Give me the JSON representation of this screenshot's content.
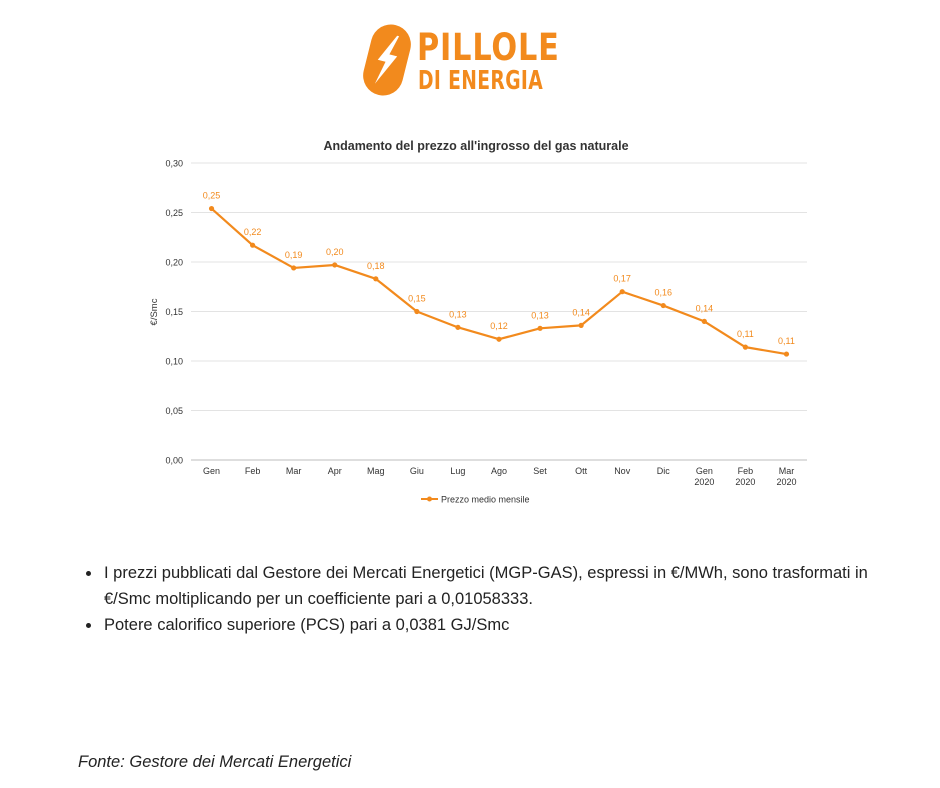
{
  "brand": {
    "line1": "PILLOLE",
    "line2": "DI ENERGIA",
    "accent_color": "#f28a1d",
    "icon": "lightning-bolt-icon"
  },
  "chart_data": {
    "type": "line",
    "title": "Andamento del prezzo all'ingrosso del gas naturale",
    "xlabel": "",
    "ylabel": "€/Smc",
    "ylim": [
      0,
      0.3
    ],
    "yticks": [
      "0,00",
      "0,05",
      "0,10",
      "0,15",
      "0,20",
      "0,25",
      "0,30"
    ],
    "categories": [
      [
        "Gen"
      ],
      [
        "Feb"
      ],
      [
        "Mar"
      ],
      [
        "Apr"
      ],
      [
        "Mag"
      ],
      [
        "Giu"
      ],
      [
        "Lug"
      ],
      [
        "Ago"
      ],
      [
        "Set"
      ],
      [
        "Ott"
      ],
      [
        "Nov"
      ],
      [
        "Dic"
      ],
      [
        "Gen",
        "2020"
      ],
      [
        "Feb",
        "2020"
      ],
      [
        "Mar",
        "2020"
      ]
    ],
    "series": [
      {
        "name": "Prezzo medio mensile",
        "color": "#f28a1d",
        "values": [
          0.254,
          0.217,
          0.194,
          0.197,
          0.183,
          0.15,
          0.134,
          0.122,
          0.133,
          0.136,
          0.17,
          0.156,
          0.14,
          0.114,
          0.107
        ],
        "labels": [
          "0,25",
          "0,22",
          "0,19",
          "0,20",
          "0,18",
          "0,15",
          "0,13",
          "0,12",
          "0,13",
          "0,14",
          "0,17",
          "0,16",
          "0,14",
          "0,11",
          "0,11"
        ]
      }
    ],
    "grid": true,
    "legend": "bottom"
  },
  "notes": [
    "I prezzi pubblicati dal Gestore dei Mercati Energetici (MGP-GAS), espressi in €/MWh, sono trasformati in €/Smc moltiplicando per un coefficiente pari a 0,01058333.",
    "Potere calorifico superiore (PCS) pari a 0,0381 GJ/Smc"
  ],
  "source": "Fonte: Gestore dei Mercati Energetici"
}
